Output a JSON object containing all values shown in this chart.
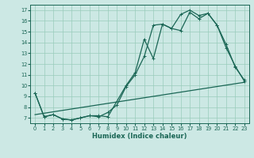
{
  "xlabel": "Humidex (Indice chaleur)",
  "bg_color": "#cce8e4",
  "grid_color": "#99ccbb",
  "line_color": "#1a6655",
  "xlim": [
    -0.5,
    23.5
  ],
  "ylim": [
    6.5,
    17.5
  ],
  "yticks": [
    7,
    8,
    9,
    10,
    11,
    12,
    13,
    14,
    15,
    16,
    17
  ],
  "xticks": [
    0,
    1,
    2,
    3,
    4,
    5,
    6,
    7,
    8,
    9,
    10,
    11,
    12,
    13,
    14,
    15,
    16,
    17,
    18,
    19,
    20,
    21,
    22,
    23
  ],
  "line1_x": [
    0,
    1,
    2,
    3,
    4,
    5,
    6,
    7,
    8,
    10,
    11,
    12,
    13,
    14,
    15,
    16,
    17,
    18,
    19,
    20,
    21,
    22,
    23
  ],
  "line1_y": [
    9.3,
    7.1,
    7.3,
    6.9,
    6.8,
    7.0,
    7.2,
    7.2,
    7.1,
    10.0,
    11.2,
    14.3,
    12.5,
    15.7,
    15.3,
    16.6,
    17.0,
    16.5,
    16.7,
    15.6,
    13.8,
    11.7,
    10.5
  ],
  "line2_x": [
    0,
    1,
    2,
    3,
    4,
    5,
    6,
    7,
    8,
    9,
    10,
    11,
    12,
    13,
    14,
    15,
    16,
    17,
    18,
    19,
    20,
    21,
    22,
    23
  ],
  "line2_y": [
    9.3,
    7.1,
    7.3,
    6.9,
    6.8,
    7.0,
    7.2,
    7.1,
    7.5,
    8.2,
    9.9,
    11.0,
    12.7,
    15.6,
    15.7,
    15.3,
    15.1,
    16.8,
    16.2,
    16.7,
    15.6,
    13.5,
    11.8,
    10.4
  ],
  "line3_x": [
    0,
    23
  ],
  "line3_y": [
    7.3,
    10.3
  ]
}
